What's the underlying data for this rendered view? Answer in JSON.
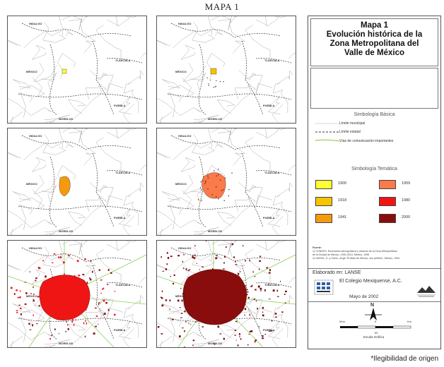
{
  "heading": "MAPA 1",
  "legend": {
    "title_lines": [
      "Mapa 1",
      "Evolución histórica de la",
      "Zona Metropolitana del",
      "Valle de México"
    ],
    "basic_title": "Simbología Básica",
    "basic_items": [
      "Límite municipal",
      "Límite estatal",
      "Vías de comunicación importantes"
    ],
    "thematic_title": "Simbología Temática",
    "years": [
      {
        "year": "1900",
        "color": "#ffff33"
      },
      {
        "year": "1918",
        "color": "#f5c400"
      },
      {
        "year": "1941",
        "color": "#f59a10"
      },
      {
        "year": "1959",
        "color": "#fa7a4a"
      },
      {
        "year": "1980",
        "color": "#f01515"
      },
      {
        "year": "2000",
        "color": "#8a0d0d"
      }
    ],
    "source_label": "Fuente:",
    "source_lines": [
      "1) CONAPO, Escenarios demográficos y urbanos de la Zona Metropolitana",
      "de la Ciudad de México, 1990-2010, México, 1998",
      "2) GARZA, G. y Gress, Jorge \"El Atlas de México, sus perfiles\", México, 1994"
    ],
    "prepared_by": "Elaborado en: LANSE",
    "institution": "El Colegio Mexiquense, A.C.",
    "date": "Mayo de 2002",
    "north": "N",
    "scale_ticks": [
      "0Km",
      "0",
      "50",
      "Km"
    ],
    "scale_caption": "Escala Gráfica"
  },
  "map_labels": {
    "hidalgo": "HIDALGO",
    "tlaxcala": "TLAXCALA",
    "mexico": "MÉXICO",
    "puebla": "PUEBLA",
    "morelos": "MORELOS"
  },
  "footnote": "*Ilegibilidad de origen"
}
